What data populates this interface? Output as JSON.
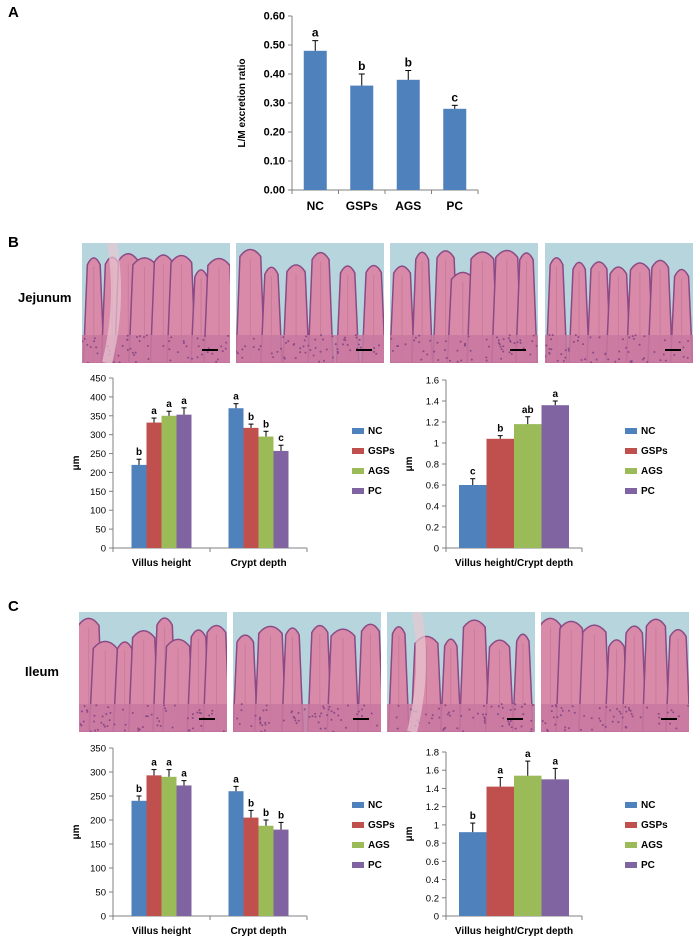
{
  "panels": {
    "a": "A",
    "b": "B",
    "c": "C"
  },
  "tissues": {
    "jejunum": "Jejunum",
    "ileum": "Ileum"
  },
  "colors": {
    "NC": "#4F81BD",
    "GSPs": "#C0504D",
    "AGS": "#9BBB59",
    "PC": "#8064A2",
    "tissue_bg": "#b7d5dc",
    "tissue_pink": "#d98aa8",
    "tissue_purple": "#8a4a86"
  },
  "chart_data": [
    {
      "id": "A",
      "type": "bar",
      "title": "",
      "ylabel": "L/M excretion ratio",
      "xlabel": "",
      "ylim": [
        0,
        0.6
      ],
      "ytick_step": 0.1,
      "ytick_decimals": 2,
      "categories": [
        "NC",
        "GSPs",
        "AGS",
        "PC"
      ],
      "series": [
        {
          "name": "L/M",
          "values": [
            0.48,
            0.36,
            0.38,
            0.28
          ],
          "errors": [
            0.035,
            0.04,
            0.032,
            0.012
          ],
          "letters": [
            "a",
            "b",
            "b",
            "c"
          ]
        }
      ]
    },
    {
      "id": "B1",
      "type": "bar",
      "tissue": "Jejunum",
      "ylabel": "μm",
      "ylim": [
        0,
        450
      ],
      "ytick_step": 50,
      "ytick_decimals": 0,
      "categories": [
        "Villus height",
        "Crypt depth"
      ],
      "series": [
        {
          "name": "NC",
          "values": [
            220,
            370
          ],
          "errors": [
            15,
            12
          ],
          "letters": [
            "b",
            "a"
          ]
        },
        {
          "name": "GSPs",
          "values": [
            332,
            318
          ],
          "errors": [
            12,
            10
          ],
          "letters": [
            "a",
            "b"
          ]
        },
        {
          "name": "AGS",
          "values": [
            350,
            295
          ],
          "errors": [
            12,
            14
          ],
          "letters": [
            "a",
            "b"
          ]
        },
        {
          "name": "PC",
          "values": [
            353,
            257
          ],
          "errors": [
            18,
            15
          ],
          "letters": [
            "a",
            "c"
          ]
        }
      ],
      "legend": [
        "NC",
        "GSPs",
        "AGS",
        "PC"
      ]
    },
    {
      "id": "B2",
      "type": "bar",
      "tissue": "Jejunum",
      "ylabel": "μm",
      "ylim": [
        0,
        1.6
      ],
      "ytick_step": 0.2,
      "ytick_decimals": -1,
      "categories": [
        "Villus height/Crypt depth"
      ],
      "series": [
        {
          "name": "NC",
          "values": [
            0.6
          ],
          "errors": [
            0.06
          ],
          "letters": [
            "c"
          ]
        },
        {
          "name": "GSPs",
          "values": [
            1.04
          ],
          "errors": [
            0.03
          ],
          "letters": [
            "b"
          ]
        },
        {
          "name": "AGS",
          "values": [
            1.18
          ],
          "errors": [
            0.07
          ],
          "letters": [
            "ab"
          ]
        },
        {
          "name": "PC",
          "values": [
            1.36
          ],
          "errors": [
            0.04
          ],
          "letters": [
            "a"
          ]
        }
      ],
      "legend": [
        "NC",
        "GSPs",
        "AGS",
        "PC"
      ]
    },
    {
      "id": "C1",
      "type": "bar",
      "tissue": "Ileum",
      "ylabel": "μm",
      "ylim": [
        0,
        350
      ],
      "ytick_step": 50,
      "ytick_decimals": 0,
      "categories": [
        "Villus height",
        "Crypt depth"
      ],
      "series": [
        {
          "name": "NC",
          "values": [
            240,
            260
          ],
          "errors": [
            10,
            10
          ],
          "letters": [
            "b",
            "a"
          ]
        },
        {
          "name": "GSPs",
          "values": [
            293,
            205
          ],
          "errors": [
            12,
            15
          ],
          "letters": [
            "a",
            "b"
          ]
        },
        {
          "name": "AGS",
          "values": [
            290,
            188
          ],
          "errors": [
            15,
            12
          ],
          "letters": [
            "a",
            "b"
          ]
        },
        {
          "name": "PC",
          "values": [
            272,
            180
          ],
          "errors": [
            10,
            15
          ],
          "letters": [
            "a",
            "b"
          ]
        }
      ],
      "legend": [
        "NC",
        "GSPs",
        "AGS",
        "PC"
      ]
    },
    {
      "id": "C2",
      "type": "bar",
      "tissue": "Ileum",
      "ylabel": "μm",
      "ylim": [
        0,
        1.8
      ],
      "ytick_step": 0.2,
      "ytick_decimals": -1,
      "categories": [
        "Villus height/Crypt depth"
      ],
      "series": [
        {
          "name": "NC",
          "values": [
            0.92
          ],
          "errors": [
            0.1
          ],
          "letters": [
            "b"
          ]
        },
        {
          "name": "GSPs",
          "values": [
            1.42
          ],
          "errors": [
            0.1
          ],
          "letters": [
            "a"
          ]
        },
        {
          "name": "AGS",
          "values": [
            1.54
          ],
          "errors": [
            0.16
          ],
          "letters": [
            "a"
          ]
        },
        {
          "name": "PC",
          "values": [
            1.5
          ],
          "errors": [
            0.12
          ],
          "letters": [
            "a"
          ]
        }
      ],
      "legend": [
        "NC",
        "GSPs",
        "AGS",
        "PC"
      ]
    }
  ]
}
